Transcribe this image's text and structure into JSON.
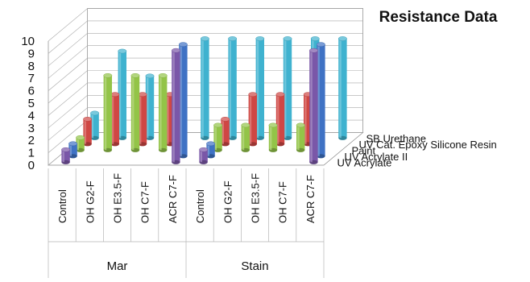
{
  "chart_data": {
    "type": "bar",
    "variant": "3d-cylinder",
    "title": "Resistance Data",
    "xlabel": "",
    "ylabel": "",
    "ylim": [
      0,
      10
    ],
    "yticks": [
      "0",
      "1",
      "2",
      "3",
      "4",
      "5",
      "6",
      "7",
      "8",
      "9",
      "10"
    ],
    "grid": true,
    "legend": "none",
    "groups": [
      {
        "name": "Mar",
        "categories": [
          "Control",
          "OH G2-F",
          "OH E3.5-F",
          "OH C7-F",
          "ACR C7-F"
        ]
      },
      {
        "name": "Stain",
        "categories": [
          "Control",
          "OH G2-F",
          "OH E3.5-F",
          "OH C7-F",
          "ACR C7-F"
        ]
      }
    ],
    "categories": [
      "Control",
      "OH G2-F",
      "OH E3.5-F",
      "OH C7-F",
      "ACR C7-F",
      "Control",
      "OH G2-F",
      "OH E3.5-F",
      "OH C7-F",
      "ACR C7-F"
    ],
    "series": [
      {
        "name": "UV Acrylate",
        "color": "#7a57a8",
        "values": [
          1,
          null,
          null,
          null,
          9,
          1,
          null,
          null,
          null,
          9
        ]
      },
      {
        "name": "UV Acrylate II",
        "color": "#3f72c4",
        "values": [
          1,
          null,
          null,
          null,
          9,
          1,
          null,
          null,
          null,
          9
        ]
      },
      {
        "name": "Paint",
        "color": "#93c448",
        "values": [
          1,
          6,
          6,
          6,
          null,
          2,
          2,
          2,
          2,
          null
        ]
      },
      {
        "name": "UV Cat. Epoxy Silicone Resin",
        "color": "#cf4744",
        "values": [
          2,
          4,
          4,
          4,
          null,
          2,
          4,
          4,
          4,
          null
        ]
      },
      {
        "name": "SB Urethane",
        "color": "#3fb2cf",
        "values": [
          2,
          7,
          5,
          3,
          8,
          8,
          8,
          8,
          8,
          8
        ]
      }
    ]
  }
}
